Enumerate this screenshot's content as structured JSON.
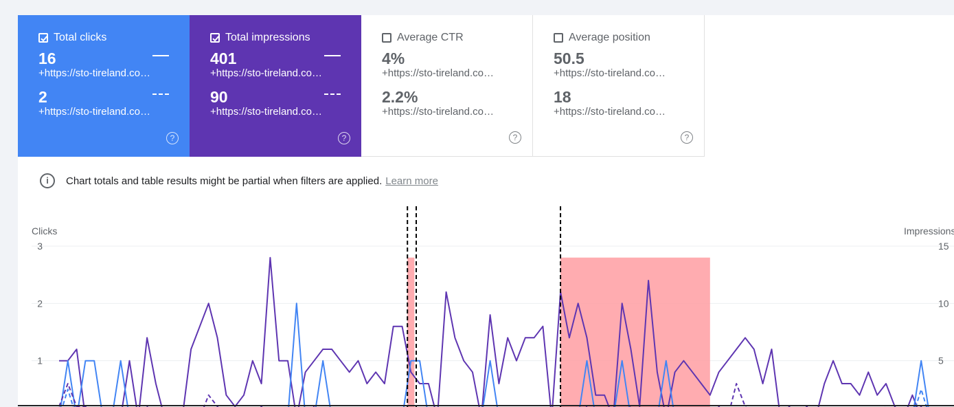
{
  "cards": [
    {
      "title": "Total clicks",
      "checked": true,
      "values": [
        "16",
        "2"
      ],
      "sources": [
        "+https://sto-tireland.co…",
        "+https://sto-tireland.co…"
      ]
    },
    {
      "title": "Total impressions",
      "checked": true,
      "values": [
        "401",
        "90"
      ],
      "sources": [
        "+https://sto-tireland.co…",
        "+https://sto-tireland.co…"
      ]
    },
    {
      "title": "Average CTR",
      "checked": false,
      "values": [
        "4%",
        "2.2%"
      ],
      "sources": [
        "+https://sto-tireland.co…",
        "+https://sto-tireland.co…"
      ]
    },
    {
      "title": "Average position",
      "checked": false,
      "values": [
        "50.5",
        "18"
      ],
      "sources": [
        "+https://sto-tireland.co…",
        "+https://sto-tireland.co…"
      ]
    }
  ],
  "help_glyph": "?",
  "info": {
    "icon": "i",
    "text": "Chart totals and table results might be partial when filters are applied.",
    "learn_more": "Learn more"
  },
  "colors": {
    "clicks": "#4285f4",
    "impressions": "#5e35b1",
    "highlight": "#ff9ea2"
  },
  "chart_data": {
    "type": "line",
    "left_axis": {
      "label": "Clicks",
      "ticks": [
        "1",
        "2",
        "3"
      ],
      "ylim": [
        0,
        3
      ]
    },
    "right_axis": {
      "label": "Impressions",
      "ticks": [
        "5",
        "10",
        "15"
      ],
      "ylim": [
        0,
        15
      ]
    },
    "grid": true,
    "x": [
      0,
      1,
      2,
      3,
      4,
      5,
      6,
      7,
      8,
      9,
      10,
      11,
      12,
      13,
      14,
      15,
      16,
      17,
      18,
      19,
      20,
      21,
      22,
      23,
      24,
      25,
      26,
      27,
      28,
      29,
      30,
      31,
      32,
      33,
      34,
      35,
      36,
      37,
      38,
      39,
      40,
      41,
      42,
      43,
      44,
      45,
      46,
      47,
      48,
      49,
      50,
      51,
      52,
      53,
      54,
      55,
      56,
      57,
      58,
      59,
      60,
      61,
      62,
      63,
      64,
      65,
      66,
      67,
      68,
      69,
      70,
      71,
      72,
      73,
      74,
      75,
      76,
      77,
      78,
      79,
      80,
      81,
      82,
      83,
      84,
      85,
      86,
      87,
      88,
      89,
      90,
      91,
      92,
      93,
      94,
      95,
      96,
      97,
      98,
      99
    ],
    "series": [
      {
        "axis": "right",
        "style": "solid",
        "color": "#5e35b1",
        "values": [
          5,
          5,
          6,
          0,
          0,
          0,
          0,
          0,
          5,
          0,
          7,
          3,
          0,
          0,
          0,
          6,
          8,
          10,
          7,
          2,
          1,
          2,
          5,
          3,
          14,
          5,
          5,
          0,
          4,
          5,
          6,
          6,
          5,
          4,
          5,
          3,
          4,
          3,
          8,
          8,
          4,
          3,
          3,
          0,
          11,
          7,
          5,
          4,
          0,
          9,
          3,
          7,
          5,
          7,
          7,
          8,
          0,
          11,
          7,
          10,
          7,
          2,
          2,
          0,
          10,
          6,
          1,
          12,
          4,
          0,
          4,
          5,
          4,
          3,
          2,
          4,
          5,
          6,
          7,
          6,
          3,
          6,
          0,
          1,
          0,
          1,
          0,
          3,
          5,
          3,
          3,
          2,
          4,
          2,
          3,
          1,
          0,
          2,
          0,
          0
        ]
      },
      {
        "axis": "left",
        "style": "solid",
        "color": "#4285f4",
        "values": [
          0,
          1,
          0,
          1,
          1,
          0,
          0,
          1,
          0,
          0,
          0,
          0,
          0,
          0,
          0,
          0,
          0,
          0,
          0,
          0,
          0,
          0,
          0,
          0,
          0,
          0,
          0,
          2,
          0,
          0,
          1,
          0,
          0,
          0,
          0,
          0,
          0,
          0,
          0,
          0,
          1,
          1,
          0,
          0,
          0,
          0,
          0,
          0,
          0,
          1,
          0,
          0,
          0,
          0,
          0,
          0,
          0,
          0,
          0,
          0,
          1,
          0,
          0,
          0,
          1,
          0,
          0,
          0,
          0,
          1,
          0,
          0,
          0,
          0,
          0,
          0,
          0,
          0,
          0,
          0,
          0,
          0,
          0,
          0,
          0,
          0,
          0,
          0,
          0,
          0,
          0,
          0,
          0,
          0,
          0,
          0,
          0,
          0,
          1,
          0
        ]
      },
      {
        "axis": "right",
        "style": "dashed",
        "color": "#5e35b1",
        "values": [
          1,
          3,
          1,
          1,
          0,
          0,
          0,
          0,
          0,
          0,
          1,
          0,
          0,
          0,
          0,
          0,
          0,
          2,
          1,
          0,
          0,
          0,
          0,
          1,
          0,
          0,
          0,
          0,
          0,
          1,
          0,
          0,
          0,
          0,
          0,
          0,
          0,
          0,
          1,
          0,
          0,
          0,
          0,
          0,
          0,
          0,
          0,
          0,
          0,
          0,
          0,
          0,
          0,
          0,
          0,
          0,
          0,
          0,
          0,
          0,
          1,
          0,
          0,
          0,
          0,
          1,
          0,
          0,
          0,
          0,
          0,
          0,
          0,
          0,
          0,
          1,
          0,
          3,
          1,
          0,
          0,
          0,
          0,
          0,
          0,
          1,
          0,
          0,
          0,
          0,
          0,
          0,
          0,
          0,
          1,
          0,
          0,
          0,
          1,
          0
        ]
      },
      {
        "axis": "left",
        "style": "dashed",
        "color": "#4285f4",
        "values": [
          0,
          0.5,
          0,
          0,
          0,
          0,
          0,
          0,
          0,
          0,
          0,
          0,
          0,
          0,
          0,
          0,
          0,
          0,
          0,
          0,
          0,
          0,
          0,
          0,
          0,
          0,
          0,
          0,
          0,
          0,
          0,
          0,
          0,
          0,
          0,
          0,
          0,
          0,
          0,
          0,
          0,
          0,
          0,
          0,
          0,
          0,
          0,
          0,
          0,
          0,
          0,
          0,
          0,
          0,
          0,
          0,
          0,
          0,
          0,
          0,
          0,
          0,
          0,
          0,
          0,
          0,
          0,
          0,
          0,
          0,
          0,
          0,
          0,
          0,
          0,
          0,
          0,
          0,
          0,
          0,
          0,
          0,
          0,
          0,
          0,
          0,
          0,
          0,
          0,
          0,
          0,
          0,
          0,
          0,
          0,
          0,
          0,
          0,
          0.5,
          0
        ]
      }
    ],
    "annotations": [
      {
        "type": "band",
        "x_start": 39.6,
        "x_end": 40.4
      },
      {
        "type": "band",
        "x_start": 57,
        "x_end": 74
      },
      {
        "type": "vline",
        "x": 39.6
      },
      {
        "type": "vline",
        "x": 40.6
      },
      {
        "type": "vline",
        "x": 57
      }
    ]
  }
}
